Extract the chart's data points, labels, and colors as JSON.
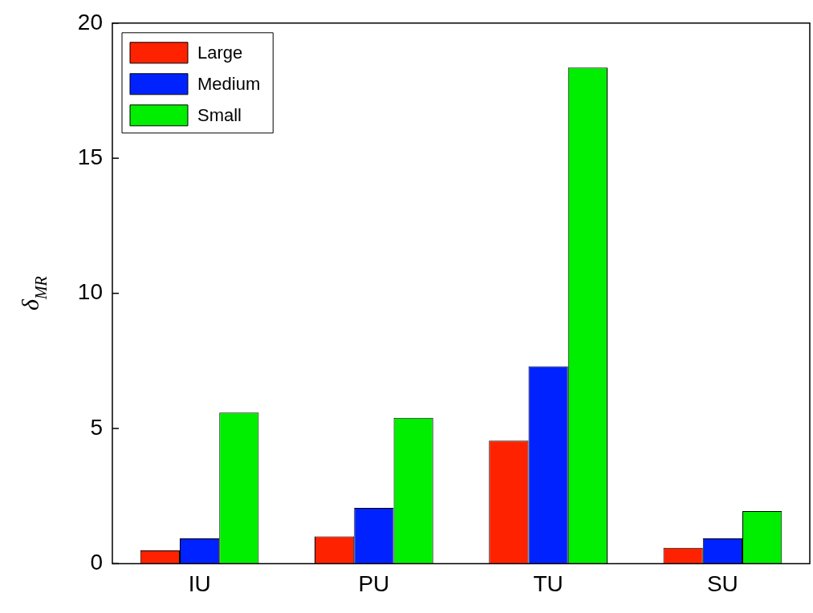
{
  "chart_data": {
    "type": "bar",
    "ylabel": "δ$_{MR}$",
    "categories": [
      "IU",
      "PU",
      "TU",
      "SU"
    ],
    "series": [
      {
        "name": "Large",
        "color": "#ff2200",
        "values": [
          0.49,
          1.01,
          4.55,
          0.58
        ]
      },
      {
        "name": "Medium",
        "color": "#0022ff",
        "values": [
          0.93,
          2.06,
          7.3,
          0.93
        ]
      },
      {
        "name": "Small",
        "color": "#00ee00",
        "values": [
          5.59,
          5.39,
          18.35,
          1.94
        ]
      }
    ],
    "ylim": [
      0,
      20
    ],
    "yticks": [
      0,
      5,
      10,
      15,
      20
    ],
    "grid": false,
    "legend": "top left"
  }
}
